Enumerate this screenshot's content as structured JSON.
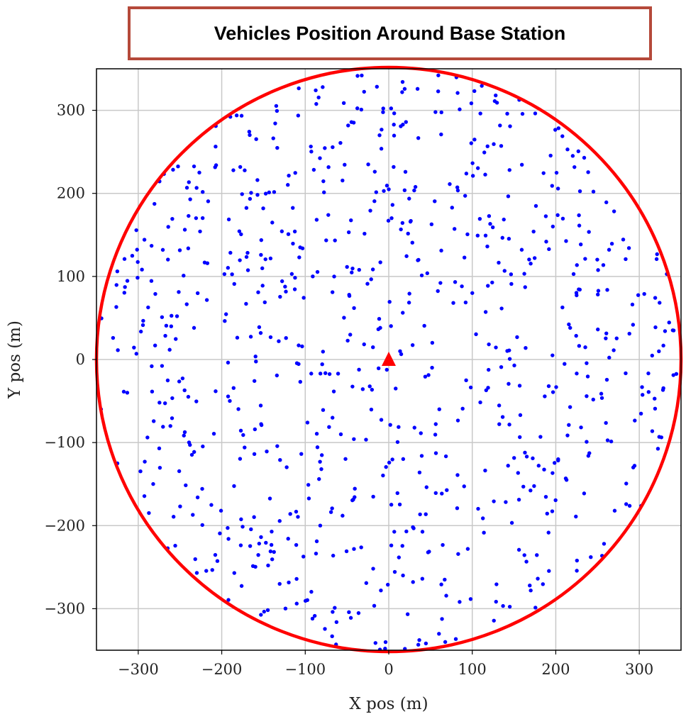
{
  "chart_data": {
    "type": "scatter",
    "title": "Vehicles Position Around Base Station",
    "xlabel": "X pos (m)",
    "ylabel": "Y pos (m)",
    "xlim": [
      -350,
      350
    ],
    "ylim": [
      -350,
      350
    ],
    "xticks": [
      -300,
      -200,
      -100,
      0,
      100,
      200,
      300
    ],
    "yticks": [
      -300,
      -200,
      -100,
      0,
      100,
      200,
      300
    ],
    "xtick_labels": [
      "−300",
      "−200",
      "−100",
      "0",
      "100",
      "200",
      "300"
    ],
    "ytick_labels": [
      "−300",
      "−200",
      "−100",
      "0",
      "100",
      "200",
      "300"
    ],
    "grid": true,
    "coverage_radius": 350,
    "base_station": {
      "x": 0,
      "y": 0,
      "marker": "triangle"
    },
    "vehicle_count": 800,
    "vehicles_color": "#0000ff",
    "circle_color": "#ff0000",
    "base_station_color": "#ff0000",
    "title_border_color": "#b5493a"
  }
}
